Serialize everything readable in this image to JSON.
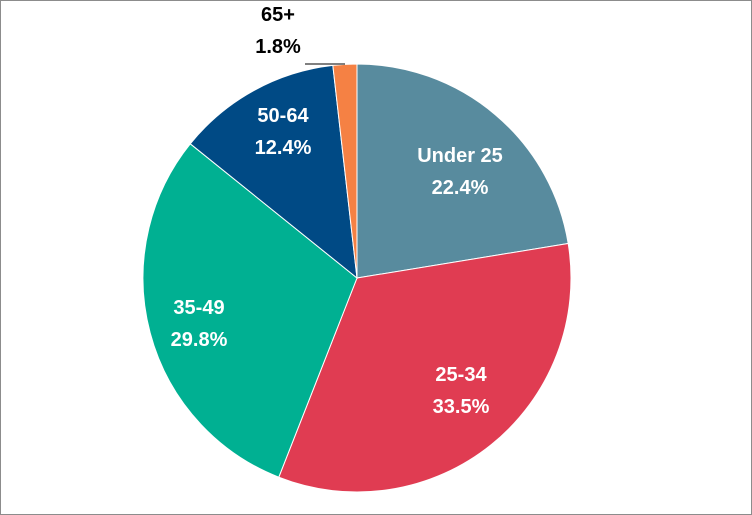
{
  "chart_data": {
    "type": "pie",
    "start_angle": "12 o'clock, clockwise",
    "slices": [
      {
        "label": "Under 25",
        "value": 22.4,
        "value_label": "22.4%",
        "color": "#588B9E",
        "label_color": "#ffffff"
      },
      {
        "label": "25-34",
        "value": 33.5,
        "value_label": "33.5%",
        "color": "#E03C52",
        "label_color": "#ffffff"
      },
      {
        "label": "35-49",
        "value": 29.8,
        "value_label": "29.8%",
        "color": "#00B092",
        "label_color": "#ffffff"
      },
      {
        "label": "50-64",
        "value": 12.4,
        "value_label": "12.4%",
        "color": "#004A85",
        "label_color": "#ffffff"
      },
      {
        "label": "65+",
        "value": 1.8,
        "value_label": "1.8%",
        "color": "#F58144",
        "label_color": "#000000"
      }
    ]
  }
}
